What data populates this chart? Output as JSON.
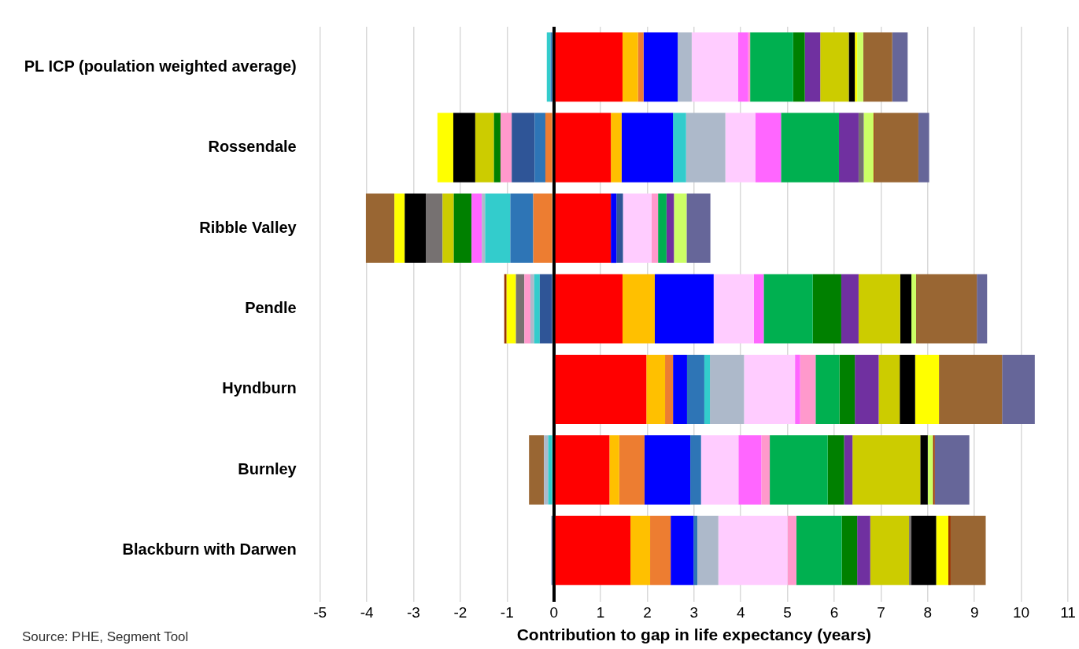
{
  "chart_data": {
    "type": "bar",
    "orientation": "horizontal",
    "stacked": true,
    "xlabel": "Contribution to gap in life expectancy (years)",
    "annotations": [
      "Source: PHE, Segment Tool"
    ],
    "categories": [
      "PL ICP (poulation weighted average)",
      "Rossendale",
      "Ribble Valley",
      "Pendle",
      "Hyndburn",
      "Burnley",
      "Blackburn with Darwen"
    ],
    "xlim": [
      -5,
      11
    ],
    "xticks": [
      -5,
      -4,
      -3,
      -2,
      -1,
      0,
      1,
      2,
      3,
      4,
      5,
      6,
      7,
      8,
      9,
      10,
      11
    ],
    "grid": "x",
    "legend": false,
    "series": [
      {
        "color": "#ff0000",
        "values": [
          1.47,
          1.22,
          1.22,
          1.47,
          1.98,
          1.19,
          1.64
        ]
      },
      {
        "color": "#ffc000",
        "values": [
          0.33,
          0.23,
          null,
          0.69,
          0.4,
          0.21,
          0.42
        ]
      },
      {
        "color": "#ed7d31",
        "values": [
          0.12,
          -0.18,
          -0.44,
          null,
          0.17,
          0.54,
          0.44
        ]
      },
      {
        "color": "#0000ff",
        "values": [
          0.73,
          1.1,
          0.12,
          1.26,
          0.3,
          0.98,
          0.49
        ]
      },
      {
        "color": "#2e75b6",
        "values": [
          -0.07,
          -0.23,
          -0.49,
          null,
          0.37,
          0.23,
          0.08
        ]
      },
      {
        "color": "#2f5597",
        "values": [
          null,
          -0.49,
          0.14,
          -0.3,
          null,
          null,
          -0.05
        ]
      },
      {
        "color": "#33cccc",
        "values": [
          -0.08,
          0.28,
          -0.54,
          -0.12,
          0.12,
          -0.12,
          null
        ]
      },
      {
        "color": "#adb9ca",
        "values": [
          0.3,
          0.84,
          -0.07,
          -0.08,
          0.73,
          -0.09,
          0.45
        ]
      },
      {
        "color": "#ffccff",
        "values": [
          0.99,
          0.64,
          0.61,
          0.86,
          1.09,
          0.8,
          1.48
        ]
      },
      {
        "color": "#ff66ff",
        "values": [
          0.22,
          0.55,
          -0.22,
          0.21,
          0.11,
          0.49,
          null
        ]
      },
      {
        "color": "#ff99cc",
        "values": [
          0.04,
          -0.24,
          0.14,
          -0.13,
          0.33,
          0.18,
          0.19
        ]
      },
      {
        "color": "#00b050",
        "values": [
          0.92,
          1.24,
          0.18,
          1.05,
          0.51,
          1.24,
          0.97
        ]
      },
      {
        "color": "#008000",
        "values": [
          0.25,
          -0.14,
          -0.38,
          0.61,
          0.33,
          0.35,
          0.33
        ]
      },
      {
        "color": "#7030a0",
        "values": [
          0.33,
          0.42,
          0.16,
          0.37,
          0.51,
          0.18,
          0.28
        ]
      },
      {
        "color": "#cccc00",
        "values": [
          0.61,
          -0.4,
          -0.24,
          0.89,
          0.45,
          1.45,
          0.83
        ]
      },
      {
        "color": "#767171",
        "values": [
          null,
          0.11,
          -0.35,
          -0.18,
          null,
          null,
          0.05
        ]
      },
      {
        "color": "#000000",
        "values": [
          0.13,
          -0.47,
          -0.46,
          0.24,
          0.33,
          0.16,
          0.53
        ]
      },
      {
        "color": "#ffff00",
        "values": [
          0.05,
          -0.34,
          -0.22,
          -0.2,
          0.51,
          null,
          0.26
        ]
      },
      {
        "color": "#ccff66",
        "values": [
          0.13,
          0.21,
          0.27,
          0.1,
          null,
          0.11,
          null
        ]
      },
      {
        "color": "#993300",
        "values": [
          null,
          0.02,
          null,
          -0.05,
          null,
          0.04,
          0.05
        ]
      },
      {
        "color": "#996633",
        "values": [
          0.62,
          0.94,
          -0.61,
          1.3,
          1.35,
          -0.32,
          0.75
        ]
      },
      {
        "color": "#666699",
        "values": [
          0.33,
          0.23,
          0.51,
          0.22,
          0.7,
          0.74,
          null
        ]
      }
    ]
  }
}
